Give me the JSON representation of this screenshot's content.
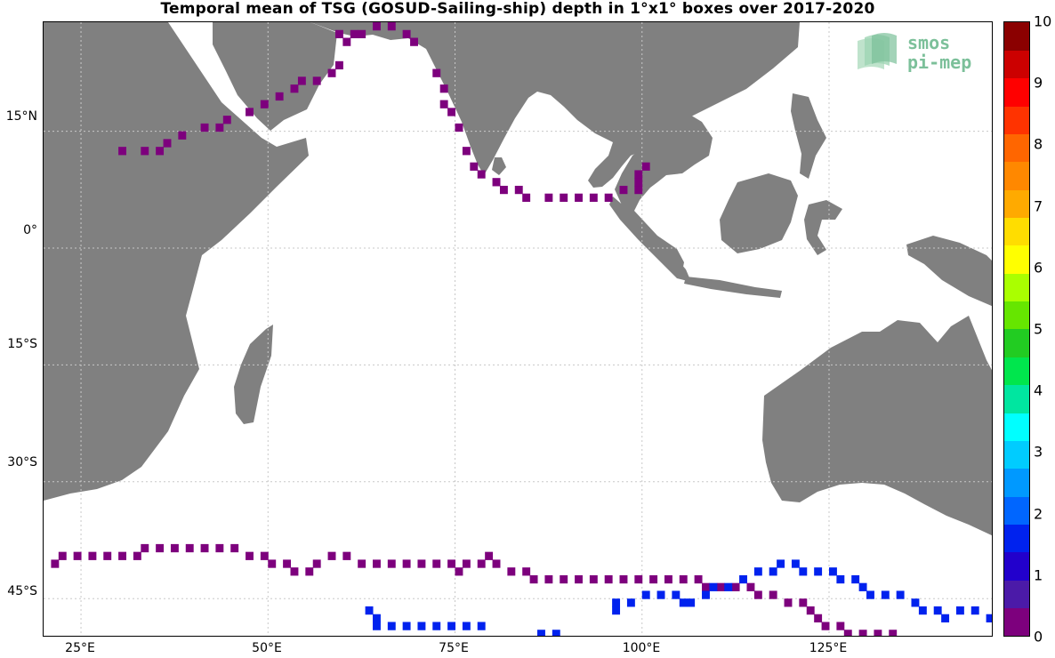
{
  "title": "Temporal mean of TSG (GOSUD-Sailing-ship) depth in 1°x1° boxes over 2017-2020",
  "logo": {
    "line1": "smos",
    "line2": "pi-mep"
  },
  "colors": {
    "land": "#808080",
    "ocean": "#ffffff",
    "grid": "#cccccc"
  },
  "axes": {
    "lat_labels": [
      "15°N",
      "0°",
      "15°S",
      "30°S",
      "45°S"
    ],
    "lon_labels": [
      "25°E",
      "50°E",
      "75°E",
      "100°E",
      "125°E"
    ]
  },
  "colorbar": {
    "ticks": [
      "0",
      "1",
      "2",
      "3",
      "4",
      "5",
      "6",
      "7",
      "8",
      "9",
      "10"
    ],
    "colors": [
      "#7d007d",
      "#4b1aa8",
      "#2200cc",
      "#0022ee",
      "#0066ff",
      "#0099ff",
      "#00ccff",
      "#00ffff",
      "#00e6a0",
      "#00e64d",
      "#22cc22",
      "#66e600",
      "#aaff00",
      "#ffff00",
      "#ffdd00",
      "#ffaa00",
      "#ff8800",
      "#ff6600",
      "#ff3300",
      "#ff0000",
      "#cc0000",
      "#8b0000"
    ]
  },
  "chart_data": {
    "type": "heatmap",
    "title": "Temporal mean of TSG (GOSUD-Sailing-ship) depth in 1°x1° boxes over 2017-2020",
    "xlim": [
      20,
      147
    ],
    "ylim": [
      -50,
      29
    ],
    "xticks": [
      25,
      50,
      75,
      100,
      125
    ],
    "yticks": [
      15,
      0,
      -15,
      -30,
      -45
    ],
    "colorbar_range": [
      0,
      10
    ],
    "grid": true,
    "tracks": [
      {
        "depth": 0.2,
        "points": [
          [
            59,
            27
          ],
          [
            60,
            26
          ],
          [
            59,
            23
          ],
          [
            58,
            22
          ],
          [
            56,
            21
          ],
          [
            54,
            21
          ],
          [
            53,
            20
          ],
          [
            51,
            19
          ],
          [
            49,
            18
          ],
          [
            47,
            17
          ],
          [
            44,
            16
          ],
          [
            43,
            15
          ],
          [
            41,
            15
          ],
          [
            38,
            14
          ],
          [
            36,
            13
          ],
          [
            35,
            12
          ],
          [
            33,
            12
          ],
          [
            30,
            12
          ]
        ]
      },
      {
        "depth": 0.2,
        "points": [
          [
            61,
            27
          ],
          [
            62,
            27
          ],
          [
            64,
            28
          ],
          [
            66,
            28
          ],
          [
            68,
            27
          ],
          [
            69,
            26
          ]
        ]
      },
      {
        "depth": 0.2,
        "points": [
          [
            72,
            22
          ],
          [
            73,
            20
          ],
          [
            73,
            18
          ],
          [
            74,
            17
          ],
          [
            75,
            15
          ],
          [
            76,
            12
          ],
          [
            77,
            10
          ],
          [
            78,
            9
          ],
          [
            80,
            8
          ],
          [
            81,
            7
          ],
          [
            83,
            7
          ],
          [
            84,
            6
          ],
          [
            87,
            6
          ],
          [
            89,
            6
          ],
          [
            91,
            6
          ],
          [
            93,
            6
          ],
          [
            95,
            6
          ],
          [
            97,
            7
          ],
          [
            99,
            7
          ],
          [
            99,
            8
          ],
          [
            99,
            9
          ],
          [
            100,
            10
          ]
        ]
      },
      {
        "depth": 0.2,
        "points": [
          [
            21,
            -41
          ],
          [
            22,
            -40
          ],
          [
            24,
            -40
          ],
          [
            26,
            -40
          ],
          [
            28,
            -40
          ],
          [
            30,
            -40
          ],
          [
            32,
            -40
          ],
          [
            33,
            -39
          ],
          [
            35,
            -39
          ],
          [
            37,
            -39
          ],
          [
            39,
            -39
          ],
          [
            41,
            -39
          ],
          [
            43,
            -39
          ],
          [
            45,
            -39
          ],
          [
            47,
            -40
          ],
          [
            49,
            -40
          ],
          [
            50,
            -41
          ],
          [
            52,
            -41
          ],
          [
            53,
            -42
          ],
          [
            55,
            -42
          ],
          [
            56,
            -41
          ],
          [
            58,
            -40
          ],
          [
            60,
            -40
          ],
          [
            62,
            -41
          ],
          [
            64,
            -41
          ],
          [
            66,
            -41
          ],
          [
            68,
            -41
          ],
          [
            70,
            -41
          ],
          [
            72,
            -41
          ],
          [
            74,
            -41
          ],
          [
            75,
            -42
          ],
          [
            76,
            -41
          ],
          [
            78,
            -41
          ],
          [
            79,
            -40
          ],
          [
            80,
            -41
          ],
          [
            82,
            -42
          ],
          [
            84,
            -42
          ],
          [
            85,
            -43
          ],
          [
            87,
            -43
          ],
          [
            89,
            -43
          ],
          [
            91,
            -43
          ],
          [
            93,
            -43
          ],
          [
            95,
            -43
          ],
          [
            97,
            -43
          ],
          [
            99,
            -43
          ],
          [
            101,
            -43
          ],
          [
            103,
            -43
          ],
          [
            105,
            -43
          ],
          [
            107,
            -43
          ],
          [
            108,
            -44
          ],
          [
            110,
            -44
          ],
          [
            112,
            -44
          ],
          [
            114,
            -44
          ],
          [
            115,
            -45
          ],
          [
            117,
            -45
          ],
          [
            119,
            -46
          ],
          [
            121,
            -46
          ],
          [
            122,
            -47
          ],
          [
            123,
            -48
          ],
          [
            124,
            -49
          ],
          [
            126,
            -49
          ],
          [
            127,
            -50
          ],
          [
            129,
            -50
          ],
          [
            131,
            -50
          ],
          [
            133,
            -50
          ]
        ]
      },
      {
        "depth": 1.6,
        "points": [
          [
            63,
            -47
          ],
          [
            64,
            -48
          ],
          [
            64,
            -49
          ],
          [
            66,
            -49
          ],
          [
            68,
            -49
          ],
          [
            70,
            -49
          ],
          [
            72,
            -49
          ],
          [
            74,
            -49
          ],
          [
            76,
            -49
          ],
          [
            78,
            -49
          ]
        ]
      },
      {
        "depth": 1.6,
        "points": [
          [
            86,
            -50
          ],
          [
            88,
            -50
          ]
        ]
      },
      {
        "depth": 1.5,
        "points": [
          [
            96,
            -46
          ],
          [
            96,
            -47
          ],
          [
            98,
            -46
          ],
          [
            100,
            -45
          ],
          [
            102,
            -45
          ],
          [
            104,
            -45
          ],
          [
            105,
            -46
          ],
          [
            106,
            -46
          ],
          [
            108,
            -45
          ],
          [
            109,
            -44
          ],
          [
            111,
            -44
          ],
          [
            113,
            -43
          ],
          [
            115,
            -42
          ],
          [
            117,
            -42
          ],
          [
            118,
            -41
          ],
          [
            120,
            -41
          ],
          [
            121,
            -42
          ],
          [
            123,
            -42
          ],
          [
            125,
            -42
          ],
          [
            126,
            -43
          ],
          [
            128,
            -43
          ],
          [
            129,
            -44
          ],
          [
            130,
            -45
          ],
          [
            132,
            -45
          ],
          [
            134,
            -45
          ]
        ]
      },
      {
        "depth": 1.5,
        "points": [
          [
            136,
            -46
          ],
          [
            137,
            -47
          ],
          [
            139,
            -47
          ],
          [
            140,
            -48
          ],
          [
            142,
            -47
          ],
          [
            144,
            -47
          ],
          [
            146,
            -48
          ]
        ]
      }
    ]
  }
}
